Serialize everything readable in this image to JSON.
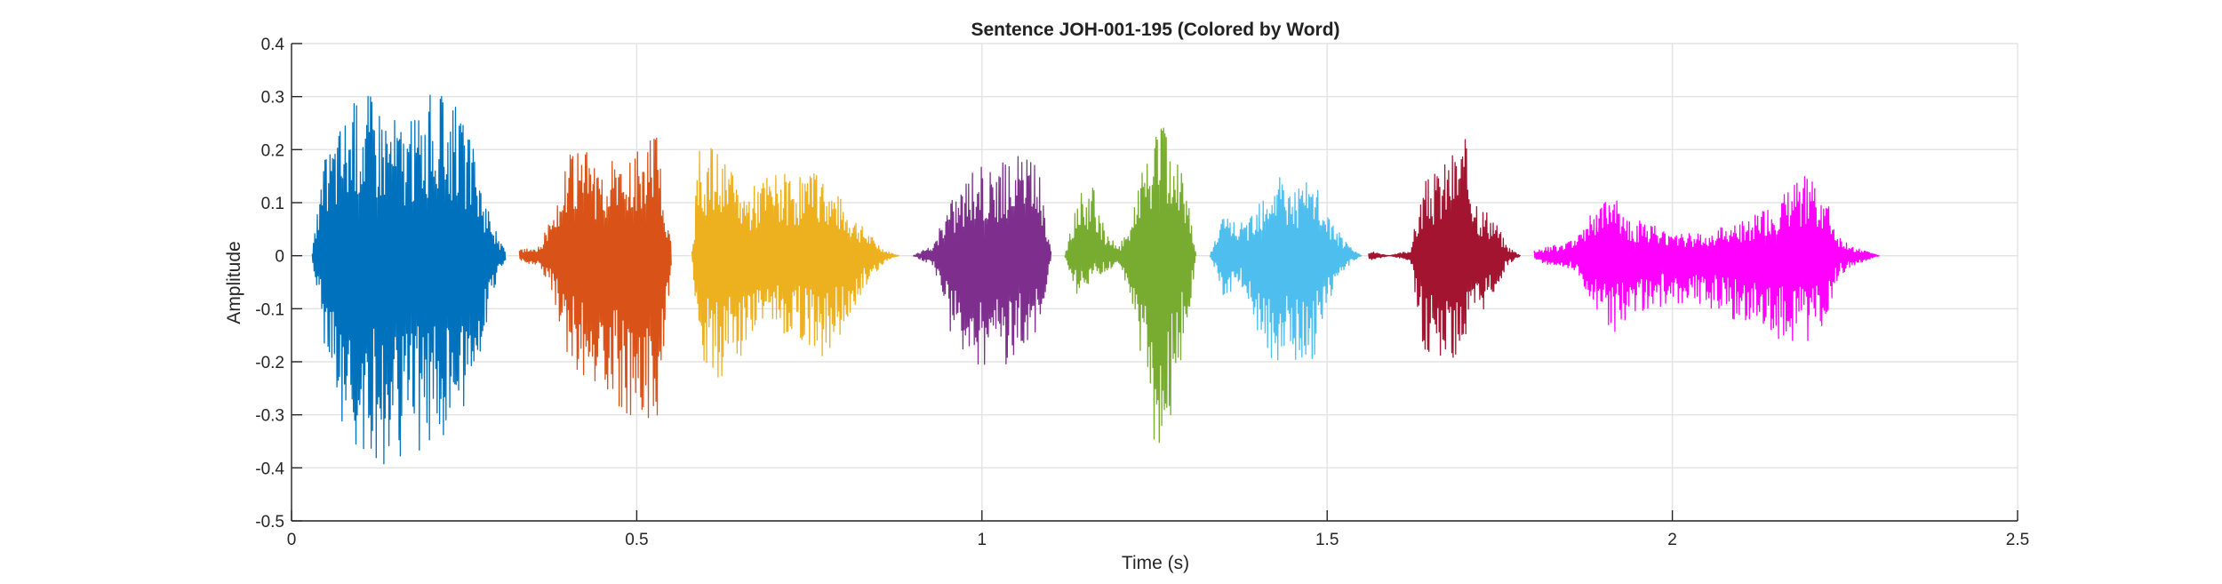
{
  "chart_data": {
    "type": "line",
    "title": "Sentence JOH-001-195 (Colored by Word)",
    "xlabel": "Time (s)",
    "ylabel": "Amplitude",
    "xlim": [
      0,
      2.5
    ],
    "ylim": [
      -0.5,
      0.4
    ],
    "xticks": [
      0,
      0.5,
      1,
      1.5,
      2,
      2.5
    ],
    "xtick_labels": [
      "0",
      "0.5",
      "1",
      "1.5",
      "2",
      "2.5"
    ],
    "yticks": [
      -0.5,
      -0.4,
      -0.3,
      -0.2,
      -0.1,
      0,
      0.1,
      0.2,
      0.3,
      0.4
    ],
    "ytick_labels": [
      "-0.5",
      "-0.4",
      "-0.3",
      "-0.2",
      "-0.1",
      "0",
      "0.1",
      "0.2",
      "0.3",
      "0.4"
    ],
    "grid": true,
    "legend": false,
    "series": [
      {
        "color": "#0072BD",
        "x": [
          0.03,
          0.05,
          0.08,
          0.11,
          0.14,
          0.17,
          0.2,
          0.23,
          0.26,
          0.28,
          0.3,
          0.31
        ],
        "ymax": [
          0.01,
          0.2,
          0.28,
          0.32,
          0.28,
          0.25,
          0.31,
          0.3,
          0.22,
          0.12,
          0.03,
          0.01
        ],
        "ymin": [
          -0.01,
          -0.2,
          -0.35,
          -0.38,
          -0.41,
          -0.36,
          -0.38,
          -0.33,
          -0.28,
          -0.15,
          -0.03,
          -0.01
        ]
      },
      {
        "color": "#D95319",
        "x": [
          0.33,
          0.36,
          0.38,
          0.4,
          0.43,
          0.46,
          0.49,
          0.51,
          0.53,
          0.55
        ],
        "ymax": [
          0.01,
          0.02,
          0.1,
          0.19,
          0.2,
          0.18,
          0.18,
          0.22,
          0.25,
          0.02
        ],
        "ymin": [
          -0.01,
          -0.02,
          -0.08,
          -0.2,
          -0.26,
          -0.28,
          -0.3,
          -0.3,
          -0.33,
          -0.02
        ]
      },
      {
        "color": "#EDB120",
        "x": [
          0.58,
          0.59,
          0.61,
          0.63,
          0.66,
          0.68,
          0.7,
          0.74,
          0.77,
          0.8,
          0.83,
          0.86,
          0.88
        ],
        "ymax": [
          0.01,
          0.2,
          0.21,
          0.17,
          0.12,
          0.15,
          0.16,
          0.16,
          0.15,
          0.1,
          0.05,
          0.01,
          0.0
        ],
        "ymin": [
          -0.01,
          -0.2,
          -0.24,
          -0.22,
          -0.18,
          -0.12,
          -0.14,
          -0.16,
          -0.2,
          -0.14,
          -0.06,
          -0.01,
          0.0
        ]
      },
      {
        "color": "#7E2F8E",
        "x": [
          0.9,
          0.93,
          0.95,
          0.98,
          1.0,
          1.03,
          1.05,
          1.08,
          1.1
        ],
        "ymax": [
          0.0,
          0.02,
          0.1,
          0.16,
          0.17,
          0.18,
          0.2,
          0.18,
          0.02
        ],
        "ymin": [
          0.0,
          -0.02,
          -0.14,
          -0.19,
          -0.21,
          -0.21,
          -0.2,
          -0.16,
          -0.02
        ]
      },
      {
        "color": "#77AC30",
        "x": [
          1.12,
          1.14,
          1.16,
          1.18,
          1.2,
          1.22,
          1.24,
          1.26,
          1.28,
          1.3,
          1.31
        ],
        "ymax": [
          0.0,
          0.12,
          0.14,
          0.04,
          0.02,
          0.1,
          0.2,
          0.26,
          0.2,
          0.1,
          0.0
        ],
        "ymin": [
          0.0,
          -0.09,
          -0.04,
          -0.03,
          -0.02,
          -0.1,
          -0.28,
          -0.42,
          -0.25,
          -0.12,
          0.0
        ]
      },
      {
        "color": "#4DBEEE",
        "x": [
          1.33,
          1.35,
          1.38,
          1.4,
          1.43,
          1.45,
          1.48,
          1.5,
          1.53,
          1.55
        ],
        "ymax": [
          0.0,
          0.08,
          0.06,
          0.12,
          0.17,
          0.13,
          0.15,
          0.08,
          0.02,
          0.0
        ],
        "ymin": [
          0.0,
          -0.08,
          -0.06,
          -0.15,
          -0.23,
          -0.2,
          -0.2,
          -0.1,
          -0.02,
          0.0
        ]
      },
      {
        "color": "#A2142F",
        "x": [
          1.56,
          1.59,
          1.62,
          1.64,
          1.66,
          1.68,
          1.7,
          1.72,
          1.74,
          1.76,
          1.78
        ],
        "ymax": [
          0.01,
          0.0,
          0.01,
          0.14,
          0.16,
          0.2,
          0.22,
          0.1,
          0.08,
          0.02,
          0.0
        ],
        "ymin": [
          -0.01,
          0.0,
          -0.01,
          -0.18,
          -0.19,
          -0.2,
          -0.18,
          -0.12,
          -0.08,
          -0.02,
          0.0
        ]
      },
      {
        "color": "#FF00FF",
        "x": [
          1.8,
          1.83,
          1.86,
          1.88,
          1.91,
          1.94,
          1.97,
          2.0,
          2.03,
          2.06,
          2.09,
          2.12,
          2.15,
          2.18,
          2.2,
          2.22,
          2.24,
          2.26,
          2.28,
          2.3
        ],
        "ymax": [
          0.01,
          0.02,
          0.03,
          0.08,
          0.12,
          0.07,
          0.06,
          0.05,
          0.04,
          0.05,
          0.06,
          0.08,
          0.1,
          0.14,
          0.16,
          0.12,
          0.04,
          0.02,
          0.01,
          0.0
        ],
        "ymin": [
          -0.01,
          -0.02,
          -0.03,
          -0.08,
          -0.16,
          -0.12,
          -0.1,
          -0.09,
          -0.1,
          -0.1,
          -0.12,
          -0.14,
          -0.16,
          -0.16,
          -0.16,
          -0.14,
          -0.04,
          -0.02,
          -0.01,
          0.0
        ]
      }
    ]
  }
}
